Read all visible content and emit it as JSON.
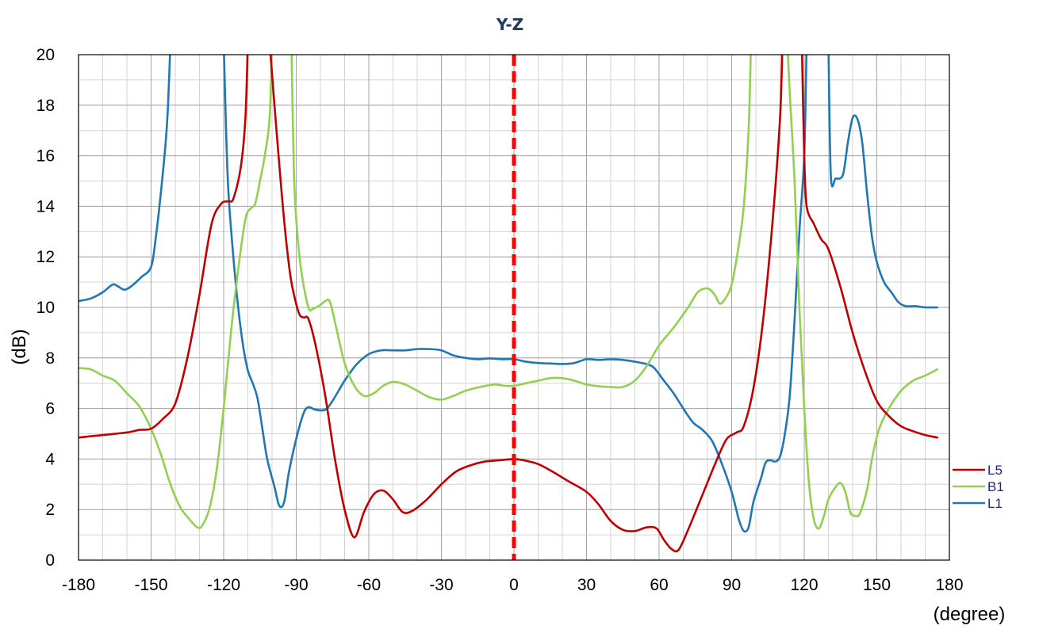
{
  "chart_data": {
    "type": "line",
    "title": "Y-Z",
    "xlabel": "(degree)",
    "ylabel": "(dB)",
    "xlim": [
      -180,
      180
    ],
    "ylim": [
      0,
      20
    ],
    "x_ticks": [
      -180,
      -150,
      -120,
      -90,
      -60,
      -30,
      0,
      30,
      60,
      90,
      120,
      150,
      180
    ],
    "y_ticks": [
      0,
      2,
      4,
      6,
      8,
      10,
      12,
      14,
      16,
      18,
      20
    ],
    "x_minor_step": 10,
    "y_minor_step": 1,
    "grid": true,
    "legend_position": "right",
    "reference_line": {
      "x": 0,
      "color": "#ff0000",
      "style": "dashed"
    },
    "series": [
      {
        "name": "L5",
        "color": "#c00000",
        "points": [
          [
            -180,
            4.85
          ],
          [
            -170,
            4.95
          ],
          [
            -160,
            5.05
          ],
          [
            -155,
            5.15
          ],
          [
            -150,
            5.2
          ],
          [
            -145,
            5.6
          ],
          [
            -140,
            6.2
          ],
          [
            -135,
            8.0
          ],
          [
            -130,
            10.5
          ],
          [
            -125,
            13.3
          ],
          [
            -121,
            14.1
          ],
          [
            -118,
            14.2
          ],
          [
            -116,
            14.3
          ],
          [
            -113,
            15.5
          ],
          [
            -111,
            17.5
          ],
          [
            -110,
            20.5
          ],
          [
            null,
            null
          ],
          [
            -101,
            20.5
          ],
          [
            -99,
            18.0
          ],
          [
            -96,
            14.5
          ],
          [
            -94,
            12.5
          ],
          [
            -92,
            11.0
          ],
          [
            -89,
            9.8
          ],
          [
            -87,
            9.6
          ],
          [
            -85,
            9.55
          ],
          [
            -82,
            8.5
          ],
          [
            -78,
            6.5
          ],
          [
            -74,
            4.0
          ],
          [
            -70,
            2.0
          ],
          [
            -66,
            0.9
          ],
          [
            -62,
            1.9
          ],
          [
            -58,
            2.6
          ],
          [
            -54,
            2.75
          ],
          [
            -50,
            2.4
          ],
          [
            -46,
            1.9
          ],
          [
            -42,
            1.95
          ],
          [
            -36,
            2.4
          ],
          [
            -30,
            3.0
          ],
          [
            -24,
            3.5
          ],
          [
            -18,
            3.75
          ],
          [
            -12,
            3.9
          ],
          [
            -6,
            3.95
          ],
          [
            0,
            4.0
          ],
          [
            4,
            3.95
          ],
          [
            10,
            3.8
          ],
          [
            16,
            3.5
          ],
          [
            22,
            3.15
          ],
          [
            30,
            2.7
          ],
          [
            35,
            2.2
          ],
          [
            40,
            1.55
          ],
          [
            45,
            1.2
          ],
          [
            50,
            1.15
          ],
          [
            55,
            1.3
          ],
          [
            59,
            1.25
          ],
          [
            62,
            0.8
          ],
          [
            65,
            0.45
          ],
          [
            68,
            0.4
          ],
          [
            72,
            1.2
          ],
          [
            78,
            2.6
          ],
          [
            84,
            4.0
          ],
          [
            88,
            4.8
          ],
          [
            92,
            5.05
          ],
          [
            95,
            5.3
          ],
          [
            99,
            6.8
          ],
          [
            103,
            9.5
          ],
          [
            107,
            13.5
          ],
          [
            110,
            17.5
          ],
          [
            111,
            20.5
          ],
          [
            null,
            null
          ],
          [
            119,
            20.5
          ],
          [
            120,
            16.0
          ],
          [
            121,
            14.0
          ],
          [
            124,
            13.3
          ],
          [
            127,
            12.7
          ],
          [
            130,
            12.3
          ],
          [
            135,
            10.8
          ],
          [
            140,
            9.0
          ],
          [
            145,
            7.5
          ],
          [
            150,
            6.3
          ],
          [
            155,
            5.7
          ],
          [
            160,
            5.3
          ],
          [
            165,
            5.1
          ],
          [
            170,
            4.95
          ],
          [
            175,
            4.85
          ]
        ]
      },
      {
        "name": "B1",
        "color": "#92d050",
        "points": [
          [
            -180,
            7.6
          ],
          [
            -175,
            7.55
          ],
          [
            -170,
            7.3
          ],
          [
            -165,
            7.1
          ],
          [
            -160,
            6.6
          ],
          [
            -155,
            6.1
          ],
          [
            -150,
            5.2
          ],
          [
            -146,
            4.2
          ],
          [
            -142,
            3.0
          ],
          [
            -138,
            2.1
          ],
          [
            -134,
            1.6
          ],
          [
            -131,
            1.3
          ],
          [
            -129,
            1.35
          ],
          [
            -126,
            2.0
          ],
          [
            -123,
            3.5
          ],
          [
            -120,
            6.0
          ],
          [
            -117,
            9.0
          ],
          [
            -114,
            11.5
          ],
          [
            -111,
            13.5
          ],
          [
            -109,
            13.9
          ],
          [
            -107,
            14.1
          ],
          [
            -105,
            15.0
          ],
          [
            -103,
            16.0
          ],
          [
            -101,
            17.5
          ],
          [
            -100,
            20.5
          ],
          [
            null,
            null
          ],
          [
            -92,
            20.5
          ],
          [
            -91,
            15.5
          ],
          [
            -90,
            13.5
          ],
          [
            -88,
            11.5
          ],
          [
            -85,
            10.0
          ],
          [
            -83,
            9.95
          ],
          [
            -80,
            10.1
          ],
          [
            -78,
            10.25
          ],
          [
            -76,
            10.2
          ],
          [
            -73,
            9.0
          ],
          [
            -70,
            7.8
          ],
          [
            -66,
            6.9
          ],
          [
            -62,
            6.5
          ],
          [
            -58,
            6.6
          ],
          [
            -54,
            6.9
          ],
          [
            -50,
            7.05
          ],
          [
            -45,
            6.95
          ],
          [
            -40,
            6.7
          ],
          [
            -35,
            6.45
          ],
          [
            -30,
            6.35
          ],
          [
            -25,
            6.5
          ],
          [
            -20,
            6.7
          ],
          [
            -14,
            6.85
          ],
          [
            -8,
            6.95
          ],
          [
            -4,
            6.9
          ],
          [
            0,
            6.9
          ],
          [
            5,
            7.0
          ],
          [
            10,
            7.1
          ],
          [
            15,
            7.2
          ],
          [
            20,
            7.2
          ],
          [
            25,
            7.1
          ],
          [
            30,
            6.95
          ],
          [
            35,
            6.88
          ],
          [
            40,
            6.85
          ],
          [
            45,
            6.85
          ],
          [
            50,
            7.1
          ],
          [
            55,
            7.7
          ],
          [
            60,
            8.5
          ],
          [
            66,
            9.2
          ],
          [
            72,
            10.0
          ],
          [
            76,
            10.6
          ],
          [
            80,
            10.75
          ],
          [
            83,
            10.5
          ],
          [
            85,
            10.15
          ],
          [
            87,
            10.3
          ],
          [
            90,
            10.9
          ],
          [
            93,
            12.5
          ],
          [
            95,
            14.0
          ],
          [
            97,
            17.0
          ],
          [
            98,
            20.5
          ],
          [
            null,
            null
          ],
          [
            113,
            20.5
          ],
          [
            114,
            18.5
          ],
          [
            116,
            15.0
          ],
          [
            118,
            10.0
          ],
          [
            120,
            6.0
          ],
          [
            122,
            3.0
          ],
          [
            124,
            1.6
          ],
          [
            126,
            1.25
          ],
          [
            128,
            1.7
          ],
          [
            130,
            2.4
          ],
          [
            133,
            2.9
          ],
          [
            135,
            3.05
          ],
          [
            137,
            2.7
          ],
          [
            139,
            1.9
          ],
          [
            141,
            1.75
          ],
          [
            143,
            1.85
          ],
          [
            146,
            2.8
          ],
          [
            148,
            4.0
          ],
          [
            151,
            5.2
          ],
          [
            155,
            6.0
          ],
          [
            160,
            6.7
          ],
          [
            165,
            7.1
          ],
          [
            170,
            7.3
          ],
          [
            175,
            7.55
          ]
        ]
      },
      {
        "name": "L1",
        "color": "#1f77b4",
        "points": [
          [
            -180,
            10.25
          ],
          [
            -175,
            10.35
          ],
          [
            -170,
            10.6
          ],
          [
            -166,
            10.9
          ],
          [
            -164,
            10.85
          ],
          [
            -161,
            10.7
          ],
          [
            -158,
            10.85
          ],
          [
            -154,
            11.2
          ],
          [
            -150,
            11.6
          ],
          [
            -148,
            12.8
          ],
          [
            -146,
            14.5
          ],
          [
            -144,
            16.5
          ],
          [
            -143,
            18.0
          ],
          [
            -142,
            20.5
          ],
          [
            null,
            null
          ],
          [
            -120,
            20.5
          ],
          [
            -119,
            17.0
          ],
          [
            -118,
            14.5
          ],
          [
            -116,
            12.0
          ],
          [
            -114,
            10.0
          ],
          [
            -112,
            8.5
          ],
          [
            -110,
            7.5
          ],
          [
            -108,
            7.0
          ],
          [
            -106,
            6.4
          ],
          [
            -104,
            5.2
          ],
          [
            -102,
            4.0
          ],
          [
            -99,
            2.9
          ],
          [
            -97,
            2.15
          ],
          [
            -95,
            2.3
          ],
          [
            -93,
            3.5
          ],
          [
            -90,
            4.8
          ],
          [
            -87,
            5.8
          ],
          [
            -85,
            6.05
          ],
          [
            -82,
            5.95
          ],
          [
            -78,
            5.95
          ],
          [
            -75,
            6.3
          ],
          [
            -70,
            7.1
          ],
          [
            -65,
            7.75
          ],
          [
            -60,
            8.15
          ],
          [
            -55,
            8.3
          ],
          [
            -50,
            8.3
          ],
          [
            -45,
            8.3
          ],
          [
            -40,
            8.35
          ],
          [
            -35,
            8.35
          ],
          [
            -30,
            8.3
          ],
          [
            -25,
            8.1
          ],
          [
            -20,
            8.0
          ],
          [
            -15,
            7.95
          ],
          [
            -10,
            7.98
          ],
          [
            -5,
            7.95
          ],
          [
            0,
            7.95
          ],
          [
            5,
            7.85
          ],
          [
            10,
            7.8
          ],
          [
            15,
            7.78
          ],
          [
            20,
            7.76
          ],
          [
            25,
            7.8
          ],
          [
            30,
            7.95
          ],
          [
            35,
            7.92
          ],
          [
            40,
            7.95
          ],
          [
            45,
            7.92
          ],
          [
            50,
            7.85
          ],
          [
            55,
            7.75
          ],
          [
            58,
            7.6
          ],
          [
            62,
            7.1
          ],
          [
            66,
            6.6
          ],
          [
            70,
            6.0
          ],
          [
            74,
            5.45
          ],
          [
            78,
            5.15
          ],
          [
            82,
            4.7
          ],
          [
            86,
            3.8
          ],
          [
            90,
            2.7
          ],
          [
            93,
            1.6
          ],
          [
            95,
            1.15
          ],
          [
            97,
            1.3
          ],
          [
            99,
            2.3
          ],
          [
            102,
            3.2
          ],
          [
            104,
            3.85
          ],
          [
            106,
            3.95
          ],
          [
            108,
            3.9
          ],
          [
            110,
            4.1
          ],
          [
            112,
            5.0
          ],
          [
            114,
            6.5
          ],
          [
            116,
            9.5
          ],
          [
            118,
            13.0
          ],
          [
            120,
            16.0
          ],
          [
            121,
            20.5
          ],
          [
            null,
            null
          ],
          [
            130,
            20.5
          ],
          [
            131,
            15.2
          ],
          [
            133,
            15.1
          ],
          [
            136,
            15.25
          ],
          [
            138,
            16.5
          ],
          [
            140,
            17.5
          ],
          [
            142,
            17.45
          ],
          [
            144,
            16.5
          ],
          [
            146,
            14.5
          ],
          [
            148,
            12.8
          ],
          [
            150,
            11.8
          ],
          [
            153,
            11.0
          ],
          [
            156,
            10.6
          ],
          [
            159,
            10.2
          ],
          [
            162,
            10.05
          ],
          [
            166,
            10.05
          ],
          [
            170,
            10.0
          ],
          [
            175,
            10.0
          ]
        ]
      }
    ]
  }
}
